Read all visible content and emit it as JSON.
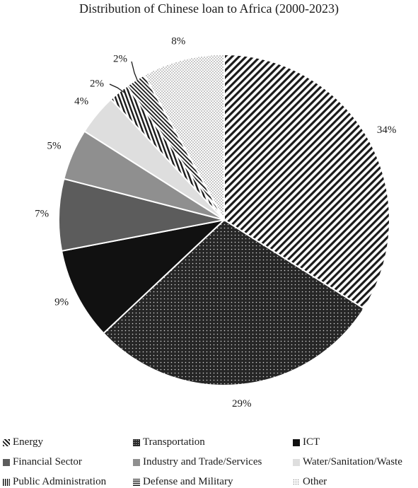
{
  "chart_data": {
    "type": "pie",
    "title": "Distribution of Chinese loan to Africa (2000-2023)",
    "categories": [
      "Energy",
      "Transportation",
      "ICT",
      "Financial Sector",
      "Industry and Trade/Services",
      "Water/Sanitation/Waste",
      "Public Administration",
      "Defense and Military",
      "Other"
    ],
    "values": [
      34,
      29,
      9,
      7,
      5,
      4,
      2,
      2,
      8
    ],
    "value_labels": [
      "34%",
      "29%",
      "9%",
      "7%",
      "5%",
      "4%",
      "2%",
      "2%",
      "8%"
    ],
    "legend_position": "bottom",
    "patterns": [
      "diagonal-stripes-white",
      "dotted-black",
      "solid-black",
      "solid-dark-gray",
      "solid-gray",
      "solid-light-gray",
      "vertical-stripes",
      "diagonal-stripes-fine",
      "dotted-light"
    ]
  }
}
